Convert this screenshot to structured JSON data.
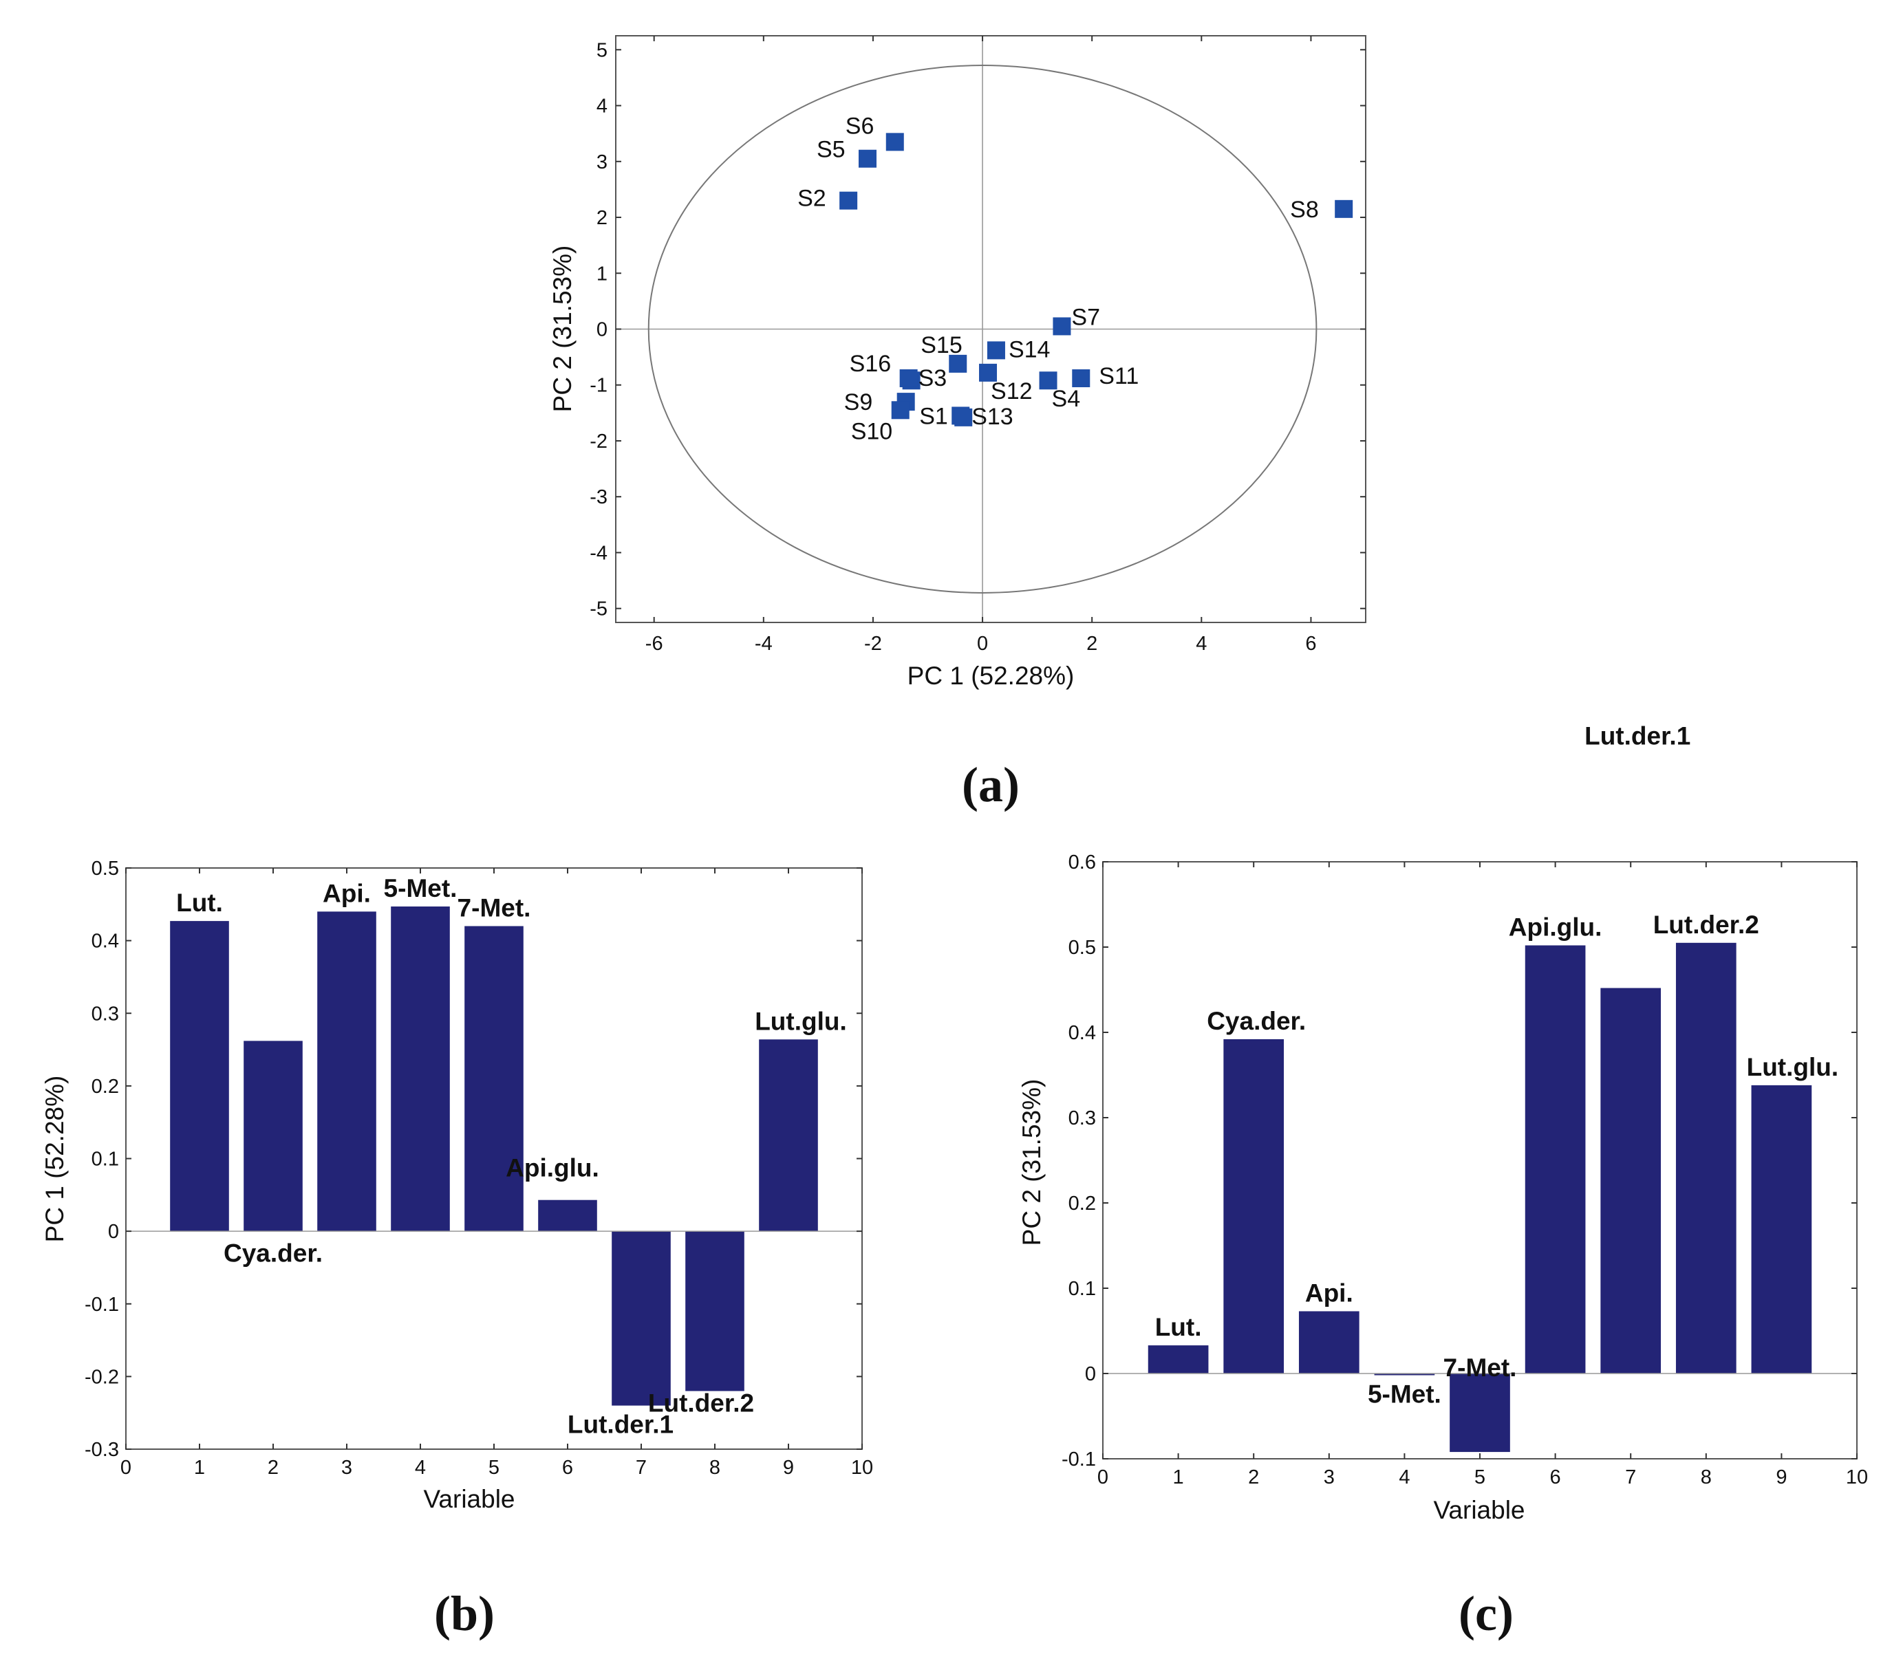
{
  "chart_data": [
    {
      "panel": "(a)",
      "type": "scatter",
      "xlabel": "PC 1 (52.28%)",
      "ylabel": "PC 2 (31.53%)",
      "xlim": [
        -6.7,
        7.0
      ],
      "ylim": [
        -5.25,
        5.25
      ],
      "xticks": [
        -6,
        -4,
        -2,
        0,
        2,
        4,
        6
      ],
      "yticks": [
        -5,
        -4,
        -3,
        -2,
        -1,
        0,
        1,
        2,
        3,
        4,
        5
      ],
      "marker_color": "#1f4fa8",
      "points": [
        {
          "label": "S1",
          "x": -0.4,
          "y": -1.55
        },
        {
          "label": "S2",
          "x": -2.45,
          "y": 2.3
        },
        {
          "label": "S3",
          "x": -1.3,
          "y": -0.92
        },
        {
          "label": "S4",
          "x": 1.2,
          "y": -0.92
        },
        {
          "label": "S5",
          "x": -2.1,
          "y": 3.05
        },
        {
          "label": "S6",
          "x": -1.6,
          "y": 3.35
        },
        {
          "label": "S7",
          "x": 1.45,
          "y": 0.05
        },
        {
          "label": "S8",
          "x": 6.6,
          "y": 2.15
        },
        {
          "label": "S9",
          "x": -1.4,
          "y": -1.3
        },
        {
          "label": "S10",
          "x": -1.5,
          "y": -1.45
        },
        {
          "label": "S11",
          "x": 1.8,
          "y": -0.88
        },
        {
          "label": "S12",
          "x": 0.1,
          "y": -0.78
        },
        {
          "label": "S13",
          "x": -0.35,
          "y": -1.58
        },
        {
          "label": "S14",
          "x": 0.25,
          "y": -0.38
        },
        {
          "label": "S15",
          "x": -0.45,
          "y": -0.62
        },
        {
          "label": "S16",
          "x": -1.35,
          "y": -0.88
        }
      ],
      "ellipse": {
        "center": [
          0,
          0
        ],
        "rx": 6.1,
        "ry": 4.72
      }
    },
    {
      "panel": "(b)",
      "type": "bar",
      "xlabel": "Variable",
      "ylabel": "PC 1 (52.28%)",
      "xlim": [
        0,
        10
      ],
      "ylim": [
        -0.3,
        0.5
      ],
      "xticks": [
        0,
        1,
        2,
        3,
        4,
        5,
        6,
        7,
        8,
        9,
        10
      ],
      "yticks": [
        -0.3,
        -0.2,
        -0.1,
        0,
        0.1,
        0.2,
        0.3,
        0.4,
        0.5
      ],
      "bar_color": "#232476",
      "categories": [
        1,
        2,
        3,
        4,
        5,
        6,
        7,
        8,
        9
      ],
      "values": [
        0.427,
        0.262,
        0.44,
        0.447,
        0.42,
        0.043,
        -0.24,
        -0.22,
        0.264
      ],
      "labels": [
        "Lut.",
        "Cya.der.",
        "Api.",
        "5-Met.",
        "7-Met.",
        "Api.glu.",
        "Lut.der.1",
        "Lut.der.2",
        "Lut.glu."
      ]
    },
    {
      "panel": "(c)",
      "type": "bar",
      "xlabel": "Variable",
      "ylabel": "PC 2 (31.53%)",
      "xlim": [
        0,
        10
      ],
      "ylim": [
        -0.1,
        0.6
      ],
      "xticks": [
        0,
        1,
        2,
        3,
        4,
        5,
        6,
        7,
        8,
        9,
        10
      ],
      "yticks": [
        -0.1,
        0,
        0.1,
        0.2,
        0.3,
        0.4,
        0.5,
        0.6
      ],
      "bar_color": "#232476",
      "categories": [
        1,
        2,
        3,
        4,
        5,
        6,
        7,
        8,
        9
      ],
      "values": [
        0.033,
        0.392,
        0.073,
        -0.002,
        -0.092,
        0.502,
        0.452,
        0.505,
        0.338
      ],
      "labels": [
        "Lut.",
        "Cya.der.",
        "Api.",
        "5-Met.",
        "7-Met.",
        "Api.glu.",
        "Lut.der.1",
        "Lut.der.2",
        "Lut.glu."
      ]
    }
  ]
}
